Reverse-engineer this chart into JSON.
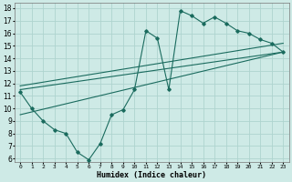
{
  "xlabel": "Humidex (Indice chaleur)",
  "bg_color": "#ceeae6",
  "grid_color": "#aed4cf",
  "line_color": "#1a6b5e",
  "xlim": [
    -0.5,
    23.5
  ],
  "ylim": [
    5.7,
    18.4
  ],
  "xticks": [
    0,
    1,
    2,
    3,
    4,
    5,
    6,
    7,
    8,
    9,
    10,
    11,
    12,
    13,
    14,
    15,
    16,
    17,
    18,
    19,
    20,
    21,
    22,
    23
  ],
  "yticks": [
    6,
    7,
    8,
    9,
    10,
    11,
    12,
    13,
    14,
    15,
    16,
    17,
    18
  ],
  "curve_x": [
    0,
    1,
    2,
    3,
    4,
    5,
    6,
    7,
    8,
    9,
    10,
    11,
    12,
    13,
    14,
    15,
    16,
    17,
    18,
    19,
    20,
    21,
    22,
    23
  ],
  "curve_y": [
    11.3,
    10.0,
    9.0,
    8.3,
    8.0,
    6.5,
    5.9,
    7.2,
    9.5,
    9.9,
    11.5,
    16.2,
    15.6,
    11.5,
    17.8,
    17.4,
    16.8,
    17.3,
    16.8,
    16.2,
    16.0,
    15.5,
    15.2,
    14.5
  ],
  "line1_x": [
    0,
    23
  ],
  "line1_y": [
    9.5,
    14.5
  ],
  "line2_x": [
    0,
    23
  ],
  "line2_y": [
    11.5,
    14.5
  ],
  "line3_x": [
    0,
    23
  ],
  "line3_y": [
    11.8,
    15.2
  ]
}
